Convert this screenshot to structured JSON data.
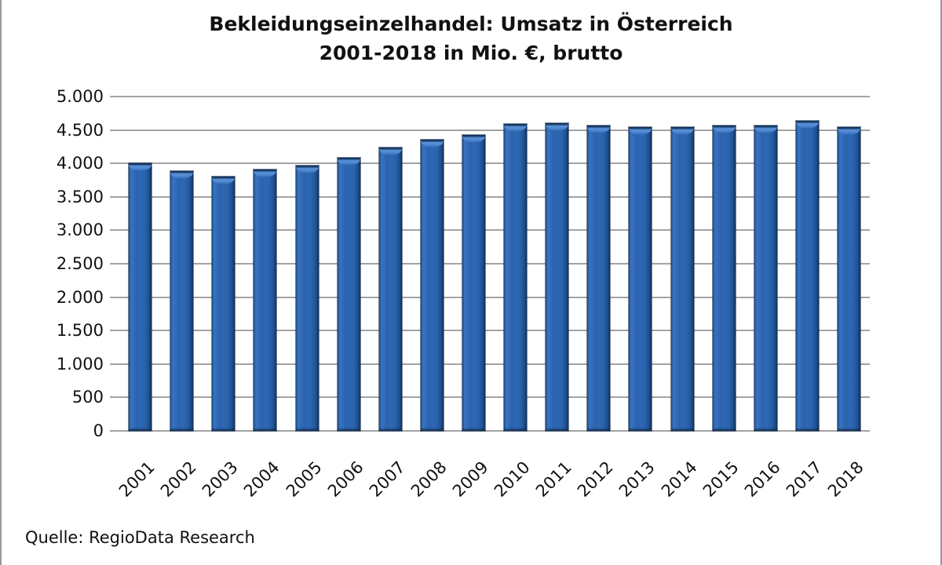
{
  "title": {
    "line1": "Bekleidungseinzelhandel: Umsatz in Österreich",
    "line2": "2001-2018 in Mio. €, brutto"
  },
  "source": "Quelle: RegioData Research",
  "colors": {
    "bar_main": "#2b63ae",
    "bar_highlight": "#5b94da",
    "bar_dark": "#12325c",
    "gridline": "#a6a6a6",
    "text": "#111111",
    "frame_border": "#999999"
  },
  "chart_data": {
    "type": "bar",
    "title": "Bekleidungseinzelhandel: Umsatz in Österreich 2001-2018 in Mio. €, brutto",
    "xlabel": "",
    "ylabel": "",
    "categories": [
      "2001",
      "2002",
      "2003",
      "2004",
      "2005",
      "2006",
      "2007",
      "2008",
      "2009",
      "2010",
      "2011",
      "2012",
      "2013",
      "2014",
      "2015",
      "2016",
      "2017",
      "2018"
    ],
    "values": [
      4000,
      3880,
      3800,
      3910,
      3970,
      4090,
      4240,
      4350,
      4420,
      4590,
      4600,
      4570,
      4540,
      4540,
      4570,
      4570,
      4640,
      4540
    ],
    "ylim": [
      0,
      5000
    ],
    "ytick_step": 500,
    "ytick_labels": [
      "0",
      "500",
      "1.000",
      "1.500",
      "2.000",
      "2.500",
      "3.000",
      "3.500",
      "4.000",
      "4.500",
      "5.000"
    ],
    "grid": true,
    "legend_position": "none"
  }
}
